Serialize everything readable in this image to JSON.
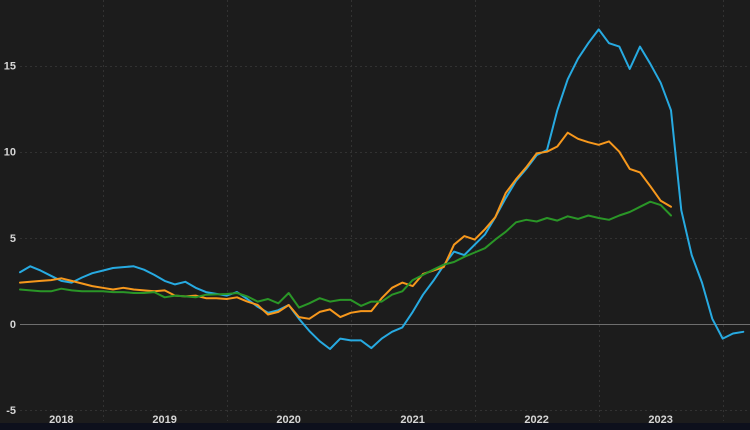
{
  "chart_data": {
    "type": "line",
    "title": "",
    "legend": "none",
    "grid": "dashed",
    "x_axis": {
      "start": "2018-05",
      "frequency": "monthly",
      "tick_labels": [
        "2018",
        "2019",
        "2020",
        "2021",
        "2022",
        "2023"
      ]
    },
    "y_axis": {
      "tick_labels": [
        "15",
        "10",
        "5",
        "0",
        "-5"
      ],
      "tick_values": [
        15,
        10,
        5,
        0,
        -5
      ],
      "visible_range": [
        -5.6,
        18.8
      ],
      "zero_line": true
    },
    "series": [
      {
        "name": "blue-line",
        "color": "#27aae1",
        "values": [
          3.0,
          3.35,
          3.1,
          2.8,
          2.5,
          2.4,
          2.7,
          2.95,
          3.1,
          3.25,
          3.3,
          3.35,
          3.15,
          2.85,
          2.5,
          2.3,
          2.45,
          2.1,
          1.85,
          1.75,
          1.65,
          1.85,
          1.45,
          1.0,
          0.65,
          0.8,
          1.1,
          0.3,
          -0.4,
          -1.0,
          -1.45,
          -0.85,
          -0.95,
          -0.95,
          -1.4,
          -0.85,
          -0.45,
          -0.2,
          0.7,
          1.7,
          2.5,
          3.4,
          4.2,
          4.0,
          4.6,
          5.2,
          6.2,
          7.3,
          8.3,
          9.0,
          9.8,
          10.1,
          12.4,
          14.2,
          15.4,
          16.3,
          17.1,
          16.3,
          16.1,
          14.8,
          16.1,
          15.1,
          14.0,
          12.4,
          6.6,
          4.0,
          2.4,
          0.3,
          -0.85,
          -0.55,
          -0.45
        ]
      },
      {
        "name": "orange-line",
        "color": "#f7981c",
        "values": [
          2.4,
          2.45,
          2.5,
          2.55,
          2.65,
          2.5,
          2.35,
          2.2,
          2.1,
          2.0,
          2.1,
          2.0,
          1.95,
          1.9,
          1.95,
          1.65,
          1.6,
          1.65,
          1.5,
          1.5,
          1.45,
          1.55,
          1.3,
          1.1,
          0.55,
          0.7,
          1.1,
          0.4,
          0.3,
          0.7,
          0.85,
          0.4,
          0.65,
          0.75,
          0.75,
          1.5,
          2.1,
          2.4,
          2.2,
          2.9,
          3.1,
          3.3,
          4.6,
          5.1,
          4.9,
          5.5,
          6.2,
          7.6,
          8.4,
          9.1,
          9.9,
          10.0,
          10.3,
          11.1,
          10.75,
          10.55,
          10.4,
          10.6,
          10.0,
          9.0,
          8.8,
          8.0,
          7.15,
          6.8
        ]
      },
      {
        "name": "green-line",
        "color": "#2a9627",
        "values": [
          2.0,
          1.95,
          1.9,
          1.9,
          2.05,
          1.95,
          1.9,
          1.9,
          1.9,
          1.85,
          1.85,
          1.8,
          1.8,
          1.85,
          1.55,
          1.65,
          1.6,
          1.55,
          1.7,
          1.72,
          1.74,
          1.8,
          1.6,
          1.3,
          1.45,
          1.2,
          1.8,
          0.95,
          1.2,
          1.5,
          1.3,
          1.4,
          1.4,
          1.05,
          1.3,
          1.3,
          1.7,
          1.9,
          2.55,
          2.85,
          3.15,
          3.45,
          3.6,
          3.9,
          4.15,
          4.4,
          4.9,
          5.35,
          5.9,
          6.05,
          5.95,
          6.15,
          6.0,
          6.25,
          6.1,
          6.3,
          6.15,
          6.05,
          6.3,
          6.5,
          6.8,
          7.1,
          6.9,
          6.3
        ]
      }
    ]
  },
  "colors": {
    "background": "#1c1c1c",
    "bottom_bar": "#0d101c",
    "grid": "#323232",
    "zero_line": "#6e6e6e",
    "tick_text": "#d6d6d6"
  }
}
